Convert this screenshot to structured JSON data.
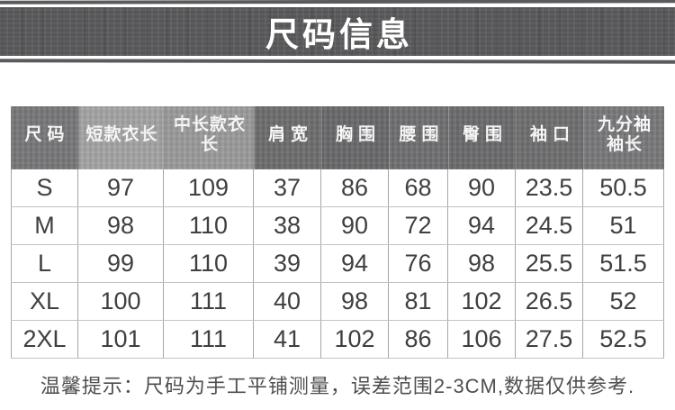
{
  "banner": {
    "title": "尺码信息"
  },
  "size_table": {
    "headers": [
      "尺码",
      "短款衣长",
      "中长款衣长",
      "肩宽",
      "胸围",
      "腰围",
      "臀围",
      "袖口",
      "九分袖\n袖长"
    ],
    "rows": [
      [
        "S",
        "97",
        "109",
        "37",
        "86",
        "68",
        "90",
        "23.5",
        "50.5"
      ],
      [
        "M",
        "98",
        "110",
        "38",
        "90",
        "72",
        "94",
        "24.5",
        "51"
      ],
      [
        "L",
        "99",
        "110",
        "39",
        "94",
        "76",
        "98",
        "25.5",
        "51.5"
      ],
      [
        "XL",
        "100",
        "111",
        "40",
        "98",
        "81",
        "102",
        "26.5",
        "52"
      ],
      [
        "2XL",
        "101",
        "111",
        "41",
        "102",
        "86",
        "106",
        "27.5",
        "52.5"
      ]
    ]
  },
  "footer": {
    "note": "温馨提示：尺码为手工平铺测量，误差范围2-3CM,数据仅供参考."
  },
  "colors": {
    "banner_bg": "#59595b",
    "header_dark": "#6d6d6f",
    "header_light": "#a4a4a4",
    "header_separator": "#8f8f8f",
    "grid_line_vertical": "#a6a6a6",
    "grid_line_horizontal": "#c3c3c3",
    "cell_text": "#3f3f3f",
    "note_text": "#4e4e4e"
  }
}
